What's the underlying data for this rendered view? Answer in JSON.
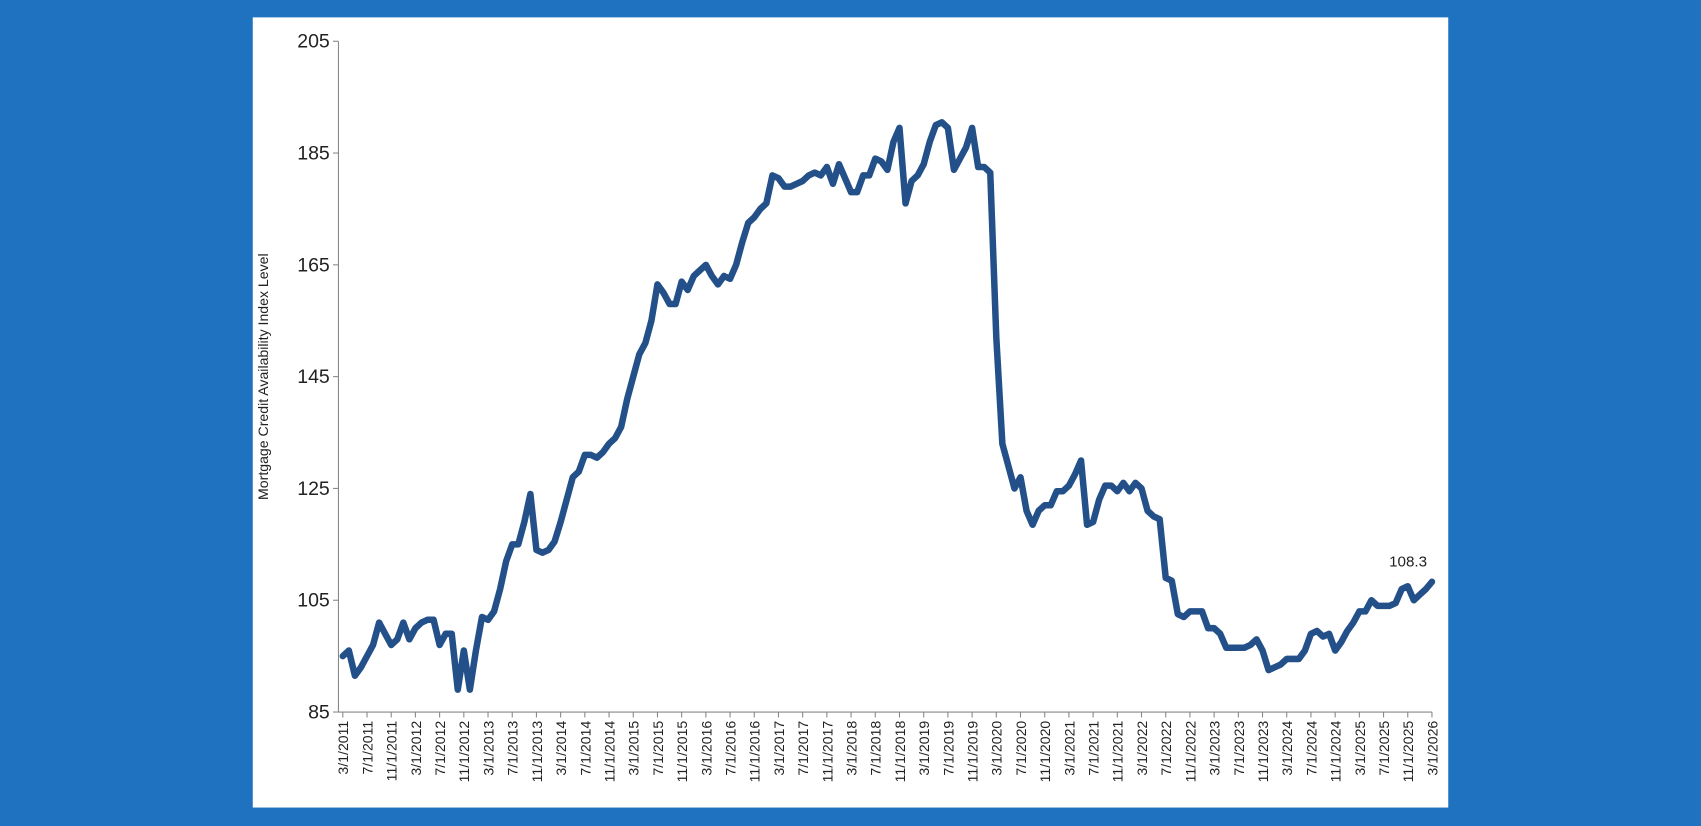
{
  "chart_data": {
    "type": "line",
    "y_label": "Mortgage Credit Availability Index Level",
    "categories": [
      "3/1/2011",
      null,
      null,
      null,
      "7/1/2011",
      null,
      null,
      null,
      "11/1/2011",
      null,
      null,
      null,
      "3/1/2012",
      null,
      null,
      null,
      "7/1/2012",
      null,
      null,
      null,
      "11/1/2012",
      null,
      null,
      null,
      "3/1/2013",
      null,
      null,
      null,
      "7/1/2013",
      null,
      null,
      null,
      "11/1/2013",
      null,
      null,
      null,
      "3/1/2014",
      null,
      null,
      null,
      "7/1/2014",
      null,
      null,
      null,
      "11/1/2014",
      null,
      null,
      null,
      "3/1/2015",
      null,
      null,
      null,
      "7/1/2015",
      null,
      null,
      null,
      "11/1/2015",
      null,
      null,
      null,
      "3/1/2016",
      null,
      null,
      null,
      "7/1/2016",
      null,
      null,
      null,
      "11/1/2016",
      null,
      null,
      null,
      "3/1/2017",
      null,
      null,
      null,
      "7/1/2017",
      null,
      null,
      null,
      "11/1/2017",
      null,
      null,
      null,
      "3/1/2018",
      null,
      null,
      null,
      "7/1/2018",
      null,
      null,
      null,
      "11/1/2018",
      null,
      null,
      null,
      "3/1/2019",
      null,
      null,
      null,
      "7/1/2019",
      null,
      null,
      null,
      "11/1/2019",
      null,
      null,
      null,
      "3/1/2020",
      null,
      null,
      null,
      "7/1/2020",
      null,
      null,
      null,
      "11/1/2020",
      null,
      null,
      null,
      "3/1/2021",
      null,
      null,
      null,
      "7/1/2021",
      null,
      null,
      null,
      "11/1/2021",
      null,
      null,
      null,
      "3/1/2022",
      null,
      null,
      null,
      "7/1/2022",
      null,
      null,
      null,
      "11/1/2022",
      null,
      null,
      null,
      "3/1/2023",
      null,
      null,
      null,
      "7/1/2023",
      null,
      null,
      null,
      "11/1/2023",
      null,
      null,
      null,
      "3/1/2024",
      null,
      null,
      null,
      "7/1/2024",
      null,
      null,
      null,
      "11/1/2024",
      null,
      null,
      null,
      "3/1/2025",
      null,
      null,
      null,
      "7/1/2025",
      null,
      null,
      null,
      "11/1/2025",
      null,
      null,
      null,
      "3/1/2026"
    ],
    "series": [
      {
        "color": "#24508a",
        "values": [
          95,
          96,
          91.5,
          93,
          95,
          97,
          101,
          99,
          97,
          98,
          101,
          98,
          100,
          101,
          101.5,
          101.5,
          97,
          99,
          99,
          89,
          96,
          89,
          96,
          102,
          101.5,
          103,
          107,
          112,
          115,
          115,
          119,
          124,
          114,
          113.5,
          114,
          115.5,
          119,
          123,
          127,
          128,
          131,
          131,
          130.5,
          131.5,
          133,
          134,
          136,
          141,
          145,
          149,
          151,
          155,
          161.5,
          160,
          158,
          158,
          162,
          160.5,
          163,
          164,
          165,
          163,
          161.5,
          163,
          162.5,
          165,
          169,
          172.5,
          173.5,
          175,
          176,
          181,
          180.5,
          179,
          179,
          179.5,
          180,
          181,
          181.5,
          181,
          182.5,
          179.5,
          183,
          180.5,
          178,
          178,
          181,
          181,
          184,
          183.5,
          182,
          187,
          189.5,
          176,
          180,
          181,
          183,
          187,
          190,
          190.5,
          189.5,
          182,
          184,
          186,
          189.5,
          182.5,
          182.5,
          181.5,
          152,
          133,
          129,
          125,
          127,
          121,
          118.5,
          121,
          122,
          122,
          124.5,
          124.5,
          125.5,
          127.5,
          130,
          118.5,
          119,
          123,
          125.5,
          125.5,
          124.5,
          126,
          124.5,
          126,
          125,
          121,
          120,
          119.5,
          109,
          108.5,
          102.5,
          102,
          103,
          103,
          103,
          100,
          100,
          99,
          96.5,
          96.5,
          96.5,
          96.5,
          97,
          98,
          96,
          92.5,
          93,
          93.5,
          94.5,
          94.5,
          94.5,
          96,
          99,
          99.5,
          98.5,
          99,
          96,
          97.5,
          99.5,
          101,
          103,
          103,
          105,
          104,
          104,
          104,
          104.5,
          107,
          107.5,
          105,
          106,
          107,
          108.3
        ]
      }
    ],
    "ylim": [
      85,
      205
    ],
    "yticks": [
      85,
      105,
      125,
      145,
      165,
      185,
      205
    ],
    "grid": false
  }
}
